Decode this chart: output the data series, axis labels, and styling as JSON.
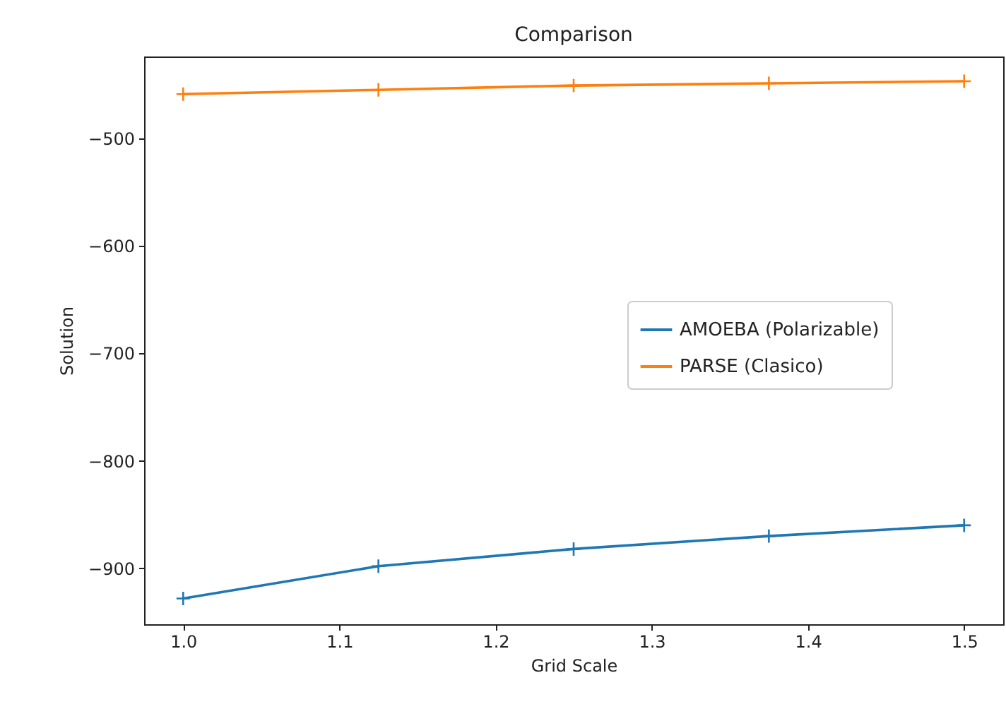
{
  "chart_data": {
    "type": "line",
    "title": "Comparison",
    "xlabel": "Grid Scale",
    "ylabel": "Solution",
    "x": [
      1,
      1.125,
      1.25,
      1.375,
      1.5
    ],
    "series": [
      {
        "name": "AMOEBA (Polarizable)",
        "color": "#1f77b4",
        "values": [
          -928,
          -898,
          -882,
          -870,
          -860
        ]
      },
      {
        "name": "PARSE (Clasico)",
        "color": "#ff7f0e",
        "values": [
          -459,
          -455,
          -451,
          -449,
          -447
        ]
      }
    ],
    "xlim": [
      0.975,
      1.525
    ],
    "xticks": [
      {
        "value": 1,
        "label": "1.0"
      },
      1.1,
      1.2,
      1.3,
      1.4,
      1.5
    ],
    "ylim": [
      -952,
      -424
    ],
    "yticks": [
      {
        "value": -900,
        "label": "−900"
      },
      {
        "value": -800,
        "label": "−800"
      },
      {
        "value": -700,
        "label": "−700"
      },
      {
        "value": -600,
        "label": "−600"
      },
      {
        "value": -500,
        "label": "−500"
      }
    ],
    "legend": "right",
    "marker": "cross",
    "line_style": "solid",
    "grid": false
  }
}
